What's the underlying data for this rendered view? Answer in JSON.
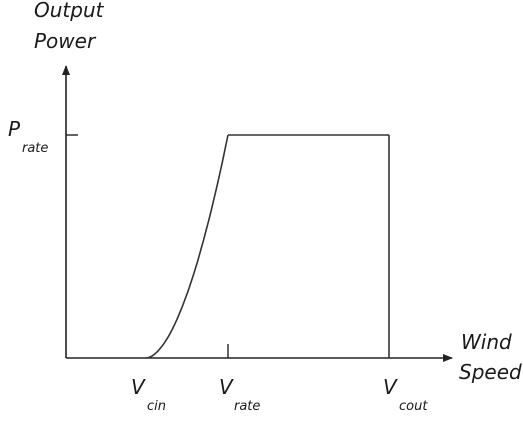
{
  "chart_data": {
    "type": "line",
    "title": "",
    "ylabel_line1": "Output",
    "ylabel_line2": "Power",
    "xlabel_line1": "Wind",
    "xlabel_line2": "Speed",
    "y_tick": {
      "main": "P",
      "sub": "rate"
    },
    "x_ticks": [
      {
        "main": "V",
        "sub": "cin"
      },
      {
        "main": "V",
        "sub": "rate"
      },
      {
        "main": "V",
        "sub": "cout"
      }
    ],
    "grid": false,
    "legend": "none",
    "series": [
      {
        "segments": [
          {
            "shape": "cubic-rise",
            "from": "V_cin",
            "to": "V_rate",
            "power_from": 0,
            "power_to": 1
          },
          {
            "shape": "constant",
            "from": "V_rate",
            "to": "V_cout",
            "power": 1
          },
          {
            "shape": "vertical-drop",
            "at": "V_cout",
            "power_from": 1,
            "power_to": 0
          }
        ]
      }
    ],
    "line_color": "#333333"
  }
}
